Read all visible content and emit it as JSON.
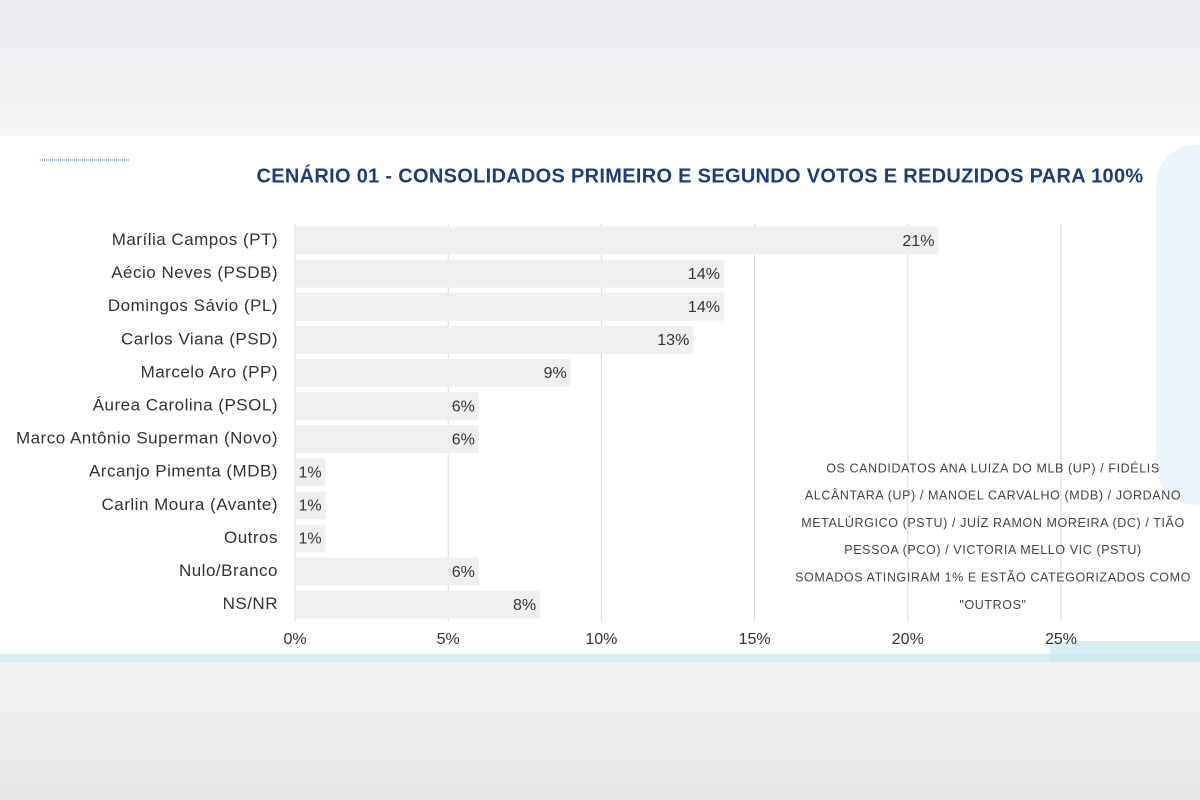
{
  "chart_data": {
    "type": "bar",
    "orientation": "horizontal",
    "title": "CENÁRIO 01 - CONSOLIDADOS PRIMEIRO E SEGUNDO VOTOS E REDUZIDOS PARA 100%",
    "categories": [
      "Marília Campos (PT)",
      "Aécio Neves (PSDB)",
      "Domingos Sávio (PL)",
      "Carlos Viana (PSD)",
      "Marcelo Aro (PP)",
      "Áurea Carolina (PSOL)",
      "Marco Antônio Superman (Novo)",
      "Arcanjo Pimenta (MDB)",
      "Carlin Moura (Avante)",
      "Outros",
      "Nulo/Branco",
      "NS/NR"
    ],
    "values": [
      21,
      14,
      14,
      13,
      9,
      6,
      6,
      1,
      1,
      1,
      6,
      8
    ],
    "value_labels": [
      "21%",
      "14%",
      "14%",
      "13%",
      "9%",
      "6%",
      "6%",
      "1%",
      "1%",
      "1%",
      "6%",
      "8%"
    ],
    "color": "#eef0f0",
    "xlim": [
      0,
      25
    ],
    "xticks": [
      {
        "value": 0,
        "label": "0%"
      },
      {
        "value": 5,
        "label": "5%"
      },
      {
        "value": 10,
        "label": "10%"
      },
      {
        "value": 15,
        "label": "15%"
      },
      {
        "value": 20,
        "label": "20%"
      },
      {
        "value": 25,
        "label": "25%"
      }
    ],
    "grid": true,
    "annotation": [
      "OS CANDIDATOS ANA LUIZA DO MLB (UP) / FIDÉLIS",
      "ALCÂNTARA (UP) / MANOEL CARVALHO (MDB) / JORDANO",
      "METALÚRGICO (PSTU) / JUÍZ RAMON MOREIRA (DC) / TIÃO",
      "PESSOA (PCO) / VICTORIA MELLO VIC (PSTU)",
      "SOMADOS ATINGIRAM 1% E ESTÃO CATEGORIZADOS COMO",
      "\"OUTROS\""
    ]
  }
}
